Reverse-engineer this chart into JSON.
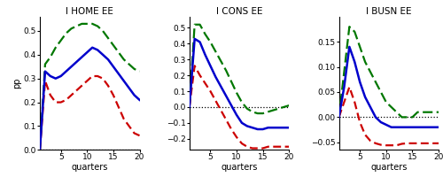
{
  "titles": [
    "I HOME EE",
    "I CONS EE",
    "I BUSN EE"
  ],
  "xlabel": "quarters",
  "ylabel": "pp",
  "x": [
    1,
    2,
    3,
    4,
    5,
    6,
    7,
    8,
    9,
    10,
    11,
    12,
    13,
    14,
    15,
    16,
    17,
    18,
    19,
    20
  ],
  "panel1": {
    "blue": [
      0.0,
      0.33,
      0.31,
      0.3,
      0.31,
      0.33,
      0.35,
      0.37,
      0.39,
      0.41,
      0.43,
      0.42,
      0.4,
      0.38,
      0.35,
      0.32,
      0.29,
      0.26,
      0.23,
      0.21
    ],
    "green": [
      0.0,
      0.36,
      0.39,
      0.43,
      0.46,
      0.49,
      0.51,
      0.52,
      0.53,
      0.53,
      0.53,
      0.52,
      0.5,
      0.47,
      0.44,
      0.41,
      0.38,
      0.36,
      0.34,
      0.33
    ],
    "red": [
      0.0,
      0.29,
      0.23,
      0.2,
      0.2,
      0.21,
      0.23,
      0.25,
      0.27,
      0.29,
      0.31,
      0.31,
      0.3,
      0.27,
      0.23,
      0.18,
      0.13,
      0.1,
      0.07,
      0.06
    ],
    "ylim": [
      0.0,
      0.56
    ],
    "yticks": [
      0.0,
      0.1,
      0.2,
      0.3,
      0.4,
      0.5
    ]
  },
  "panel2": {
    "blue": [
      0.0,
      0.43,
      0.41,
      0.33,
      0.26,
      0.19,
      0.13,
      0.07,
      0.01,
      -0.05,
      -0.1,
      -0.12,
      -0.13,
      -0.14,
      -0.14,
      -0.13,
      -0.13,
      -0.13,
      -0.13,
      -0.13
    ],
    "green": [
      0.0,
      0.52,
      0.52,
      0.46,
      0.41,
      0.35,
      0.29,
      0.23,
      0.16,
      0.09,
      0.03,
      -0.01,
      -0.03,
      -0.04,
      -0.04,
      -0.03,
      -0.02,
      -0.01,
      0.0,
      0.01
    ],
    "red": [
      0.0,
      0.26,
      0.2,
      0.15,
      0.1,
      0.04,
      -0.02,
      -0.08,
      -0.14,
      -0.19,
      -0.23,
      -0.25,
      -0.26,
      -0.26,
      -0.26,
      -0.25,
      -0.25,
      -0.25,
      -0.25,
      -0.25
    ],
    "ylim": [
      -0.27,
      0.57
    ],
    "yticks": [
      -0.2,
      -0.1,
      0.0,
      0.1,
      0.2,
      0.3,
      0.4,
      0.5
    ]
  },
  "panel3": {
    "blue": [
      0.0,
      0.06,
      0.14,
      0.11,
      0.07,
      0.04,
      0.02,
      0.0,
      -0.01,
      -0.015,
      -0.02,
      -0.02,
      -0.02,
      -0.02,
      -0.02,
      -0.02,
      -0.02,
      -0.02,
      -0.02,
      -0.02
    ],
    "green": [
      0.0,
      0.09,
      0.18,
      0.17,
      0.14,
      0.11,
      0.09,
      0.07,
      0.05,
      0.03,
      0.02,
      0.01,
      0.0,
      0.0,
      0.0,
      0.01,
      0.01,
      0.01,
      0.01,
      0.01
    ],
    "red": [
      0.0,
      0.03,
      0.06,
      0.03,
      -0.01,
      -0.035,
      -0.047,
      -0.052,
      -0.055,
      -0.056,
      -0.056,
      -0.056,
      -0.053,
      -0.052,
      -0.052,
      -0.052,
      -0.052,
      -0.052,
      -0.052,
      -0.052
    ],
    "ylim": [
      -0.065,
      0.2
    ],
    "yticks": [
      -0.05,
      0.0,
      0.05,
      0.1,
      0.15
    ]
  },
  "blue_color": "#0000cc",
  "green_color": "#007700",
  "red_color": "#cc0000",
  "lw_blue": 1.8,
  "lw_dashed": 1.6,
  "dash_green": [
    5,
    2
  ],
  "dash_red": [
    4,
    2
  ]
}
